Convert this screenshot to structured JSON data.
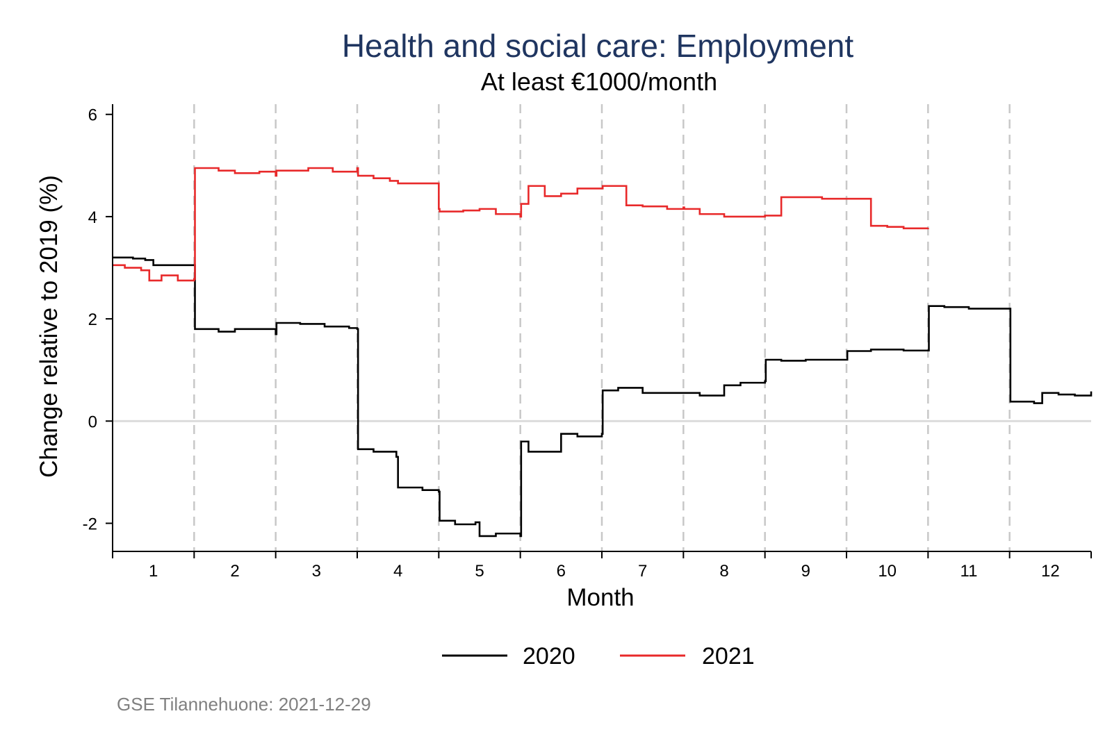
{
  "colors": {
    "series_2020": "#000000",
    "series_2021": "#e8292a",
    "title": "#1f3560",
    "grid": "#c8c8c8",
    "zero_line": "#dcdcdc",
    "note": "#808080"
  },
  "chart_data": {
    "type": "line",
    "title": "Health and social care: Employment",
    "subtitle": "At least €1000/month",
    "xlabel": "Month",
    "ylabel": "Change relative to 2019 (%)",
    "xlim": [
      0.5,
      12.5
    ],
    "ylim": [
      -2.55,
      6.2
    ],
    "x_ticks": [
      1,
      2,
      3,
      4,
      5,
      6,
      7,
      8,
      9,
      10,
      11,
      12
    ],
    "x_tick_labels": [
      "1",
      "2",
      "3",
      "4",
      "5",
      "6",
      "7",
      "8",
      "9",
      "10",
      "11",
      "12"
    ],
    "y_ticks": [
      -2,
      0,
      2,
      4,
      6
    ],
    "y_tick_labels": [
      "-2",
      "0",
      "2",
      "4",
      "6"
    ],
    "month_boundaries": [
      1.5,
      2.5,
      3.5,
      4.5,
      5.5,
      6.5,
      7.5,
      8.5,
      9.5,
      10.5,
      11.5
    ],
    "step_lines": true,
    "legend_position": "bottom",
    "series": [
      {
        "name": "2020",
        "x": [
          0.5,
          0.75,
          0.9,
          1.0,
          1.2,
          1.5,
          1.51,
          1.8,
          2.0,
          2.2,
          2.5,
          2.51,
          2.8,
          3.1,
          3.4,
          3.5,
          3.51,
          3.7,
          3.98,
          4.0,
          4.3,
          4.5,
          4.51,
          4.7,
          4.95,
          5.0,
          5.2,
          5.5,
          5.51,
          5.6,
          5.8,
          6.0,
          6.2,
          6.5,
          6.51,
          6.7,
          7.0,
          7.3,
          7.5,
          7.7,
          7.85,
          8.0,
          8.2,
          8.5,
          8.51,
          8.7,
          9.0,
          9.5,
          9.51,
          9.8,
          10.2,
          10.5,
          10.51,
          10.7,
          11.0,
          11.2,
          11.5,
          11.51,
          11.8,
          11.9,
          12.1,
          12.3,
          12.5
        ],
        "values": [
          3.2,
          3.18,
          3.15,
          3.05,
          3.05,
          3.05,
          1.8,
          1.75,
          1.8,
          1.8,
          1.7,
          1.92,
          1.9,
          1.85,
          1.82,
          1.8,
          -0.55,
          -0.6,
          -0.7,
          -1.3,
          -1.35,
          -1.38,
          -1.95,
          -2.02,
          -1.98,
          -2.25,
          -2.2,
          -2.25,
          -0.4,
          -0.6,
          -0.6,
          -0.25,
          -0.3,
          -0.25,
          0.6,
          0.65,
          0.55,
          0.55,
          0.55,
          0.5,
          0.5,
          0.7,
          0.75,
          0.78,
          1.2,
          1.18,
          1.2,
          1.2,
          1.37,
          1.4,
          1.38,
          1.38,
          2.25,
          2.23,
          2.2,
          2.2,
          2.2,
          0.38,
          0.35,
          0.55,
          0.52,
          0.5,
          0.58
        ]
      },
      {
        "name": "2021",
        "x": [
          0.5,
          0.65,
          0.85,
          0.95,
          1.1,
          1.3,
          1.5,
          1.51,
          1.8,
          2.0,
          2.3,
          2.5,
          2.51,
          2.9,
          3.2,
          3.5,
          3.51,
          3.7,
          3.9,
          4.0,
          4.5,
          4.51,
          4.8,
          5.0,
          5.2,
          5.5,
          5.51,
          5.6,
          5.8,
          6.0,
          6.2,
          6.5,
          6.51,
          6.8,
          7.0,
          7.3,
          7.5,
          7.51,
          7.7,
          8.0,
          8.2,
          8.5,
          8.51,
          8.7,
          9.0,
          9.2,
          9.5,
          9.51,
          9.8,
          10.0,
          10.2,
          10.5
        ],
        "values": [
          3.05,
          3.0,
          2.95,
          2.75,
          2.85,
          2.75,
          2.78,
          4.95,
          4.9,
          4.85,
          4.88,
          4.8,
          4.9,
          4.95,
          4.88,
          4.95,
          4.8,
          4.75,
          4.7,
          4.65,
          4.15,
          4.1,
          4.12,
          4.15,
          4.05,
          4.0,
          4.25,
          4.6,
          4.4,
          4.45,
          4.55,
          4.55,
          4.6,
          4.22,
          4.2,
          4.15,
          4.18,
          4.15,
          4.05,
          4.0,
          4.0,
          4.02,
          4.02,
          4.38,
          4.38,
          4.35,
          4.35,
          4.35,
          3.82,
          3.8,
          3.77,
          3.78
        ]
      }
    ]
  },
  "legend": {
    "items": [
      "2020",
      "2021"
    ]
  },
  "footer": {
    "note": "GSE Tilannehuone: 2021-12-29"
  }
}
